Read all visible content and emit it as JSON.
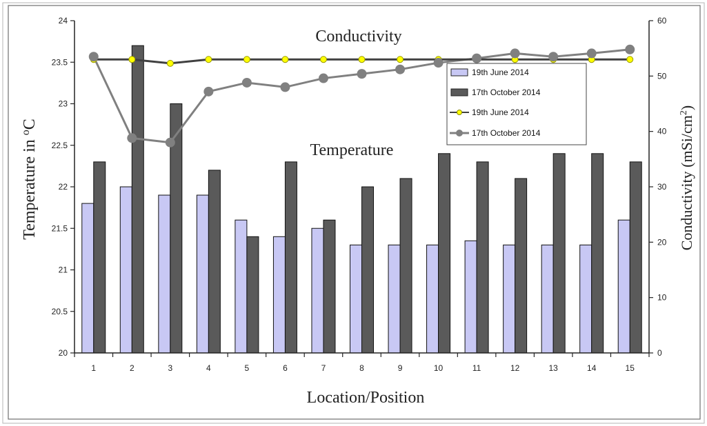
{
  "chart_data": {
    "type": "bar",
    "title": "",
    "xlabel": "Location/Position",
    "ylabel_left": "Temperature in °C",
    "ylabel_left_parts": [
      "Temperature in ",
      "o",
      "C"
    ],
    "ylabel_right": "Conductivity (mSi/cm²)",
    "ylabel_right_parts": [
      "Conductivity (mSi/cm",
      "2",
      ")"
    ],
    "categories": [
      "1",
      "2",
      "3",
      "4",
      "5",
      "6",
      "7",
      "8",
      "9",
      "10",
      "11",
      "12",
      "13",
      "14",
      "15"
    ],
    "y_left": {
      "min": 20,
      "max": 24,
      "ticks": [
        20,
        20.5,
        21,
        21.5,
        22,
        22.5,
        23,
        23.5,
        24
      ],
      "tick_labels": [
        "20",
        "20.5",
        "21",
        "21.5",
        "22",
        "22.5",
        "23",
        "23.5",
        "24"
      ]
    },
    "y_right": {
      "min": 0,
      "max": 60,
      "ticks": [
        0,
        10,
        20,
        30,
        40,
        50,
        60
      ],
      "tick_labels": [
        "0",
        "10",
        "20",
        "30",
        "40",
        "50",
        "60"
      ]
    },
    "bar_series": [
      {
        "name": "19th June 2014",
        "axis": "left",
        "color": "#c8c8f4",
        "values": [
          21.8,
          22.0,
          21.9,
          21.9,
          21.6,
          21.4,
          21.5,
          21.3,
          21.3,
          21.3,
          21.35,
          21.3,
          21.3,
          21.3,
          21.6
        ]
      },
      {
        "name": "17th October 2014",
        "axis": "left",
        "color": "#5a5a5a",
        "values": [
          22.3,
          23.7,
          23.0,
          22.2,
          21.4,
          22.3,
          21.6,
          22.0,
          22.1,
          22.4,
          22.3,
          22.1,
          22.4,
          22.4,
          22.3
        ]
      }
    ],
    "line_series": [
      {
        "name": "19th June 2014",
        "axis": "right",
        "color": "#404040",
        "marker_color": "#ffff00",
        "values": [
          53,
          53,
          52.3,
          53,
          53,
          53,
          53,
          53,
          53,
          53,
          53,
          53,
          53,
          53,
          53
        ]
      },
      {
        "name": "17th October 2014",
        "axis": "right",
        "color": "#808080",
        "marker_color": "#808080",
        "values": [
          53.5,
          38.8,
          38,
          47.2,
          48.8,
          48,
          49.6,
          50.4,
          51.2,
          52.4,
          53.2,
          54.1,
          53.5,
          54.1,
          54.8
        ]
      }
    ],
    "annotations": [
      {
        "text": "Conductivity"
      },
      {
        "text": "Temperature"
      }
    ],
    "legend_position": "top-right",
    "grid": false
  }
}
